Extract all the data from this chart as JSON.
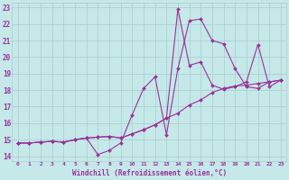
{
  "xlabel": "Windchill (Refroidissement éolien,°C)",
  "xlim": [
    -0.5,
    23.5
  ],
  "ylim": [
    13.7,
    23.3
  ],
  "xtick_vals": [
    0,
    1,
    2,
    3,
    4,
    5,
    6,
    7,
    8,
    9,
    10,
    11,
    12,
    13,
    14,
    15,
    16,
    17,
    18,
    19,
    20,
    21,
    22,
    23
  ],
  "ytick_vals": [
    14,
    15,
    16,
    17,
    18,
    19,
    20,
    21,
    22,
    23
  ],
  "background_color": "#c5e8e8",
  "grid_color": "#aacccc",
  "line_color": "#993399",
  "series": [
    [
      14.8,
      14.8,
      14.85,
      14.9,
      14.85,
      15.0,
      15.1,
      14.1,
      14.35,
      14.8,
      16.5,
      18.1,
      18.8,
      15.3,
      19.3,
      22.2,
      22.3,
      21.0,
      20.8,
      19.3,
      18.2,
      18.1,
      18.5,
      18.6
    ],
    [
      14.8,
      14.8,
      14.85,
      14.9,
      14.85,
      15.0,
      15.1,
      15.15,
      15.2,
      15.1,
      15.35,
      15.6,
      15.9,
      16.3,
      22.9,
      19.5,
      19.7,
      18.3,
      18.05,
      18.2,
      18.5,
      20.75,
      18.2,
      18.6
    ],
    [
      14.8,
      14.8,
      14.85,
      14.9,
      14.85,
      15.0,
      15.1,
      15.15,
      15.2,
      15.1,
      15.35,
      15.6,
      15.9,
      16.3,
      16.6,
      17.1,
      17.4,
      17.85,
      18.1,
      18.25,
      18.3,
      18.4,
      18.5,
      18.6
    ]
  ]
}
